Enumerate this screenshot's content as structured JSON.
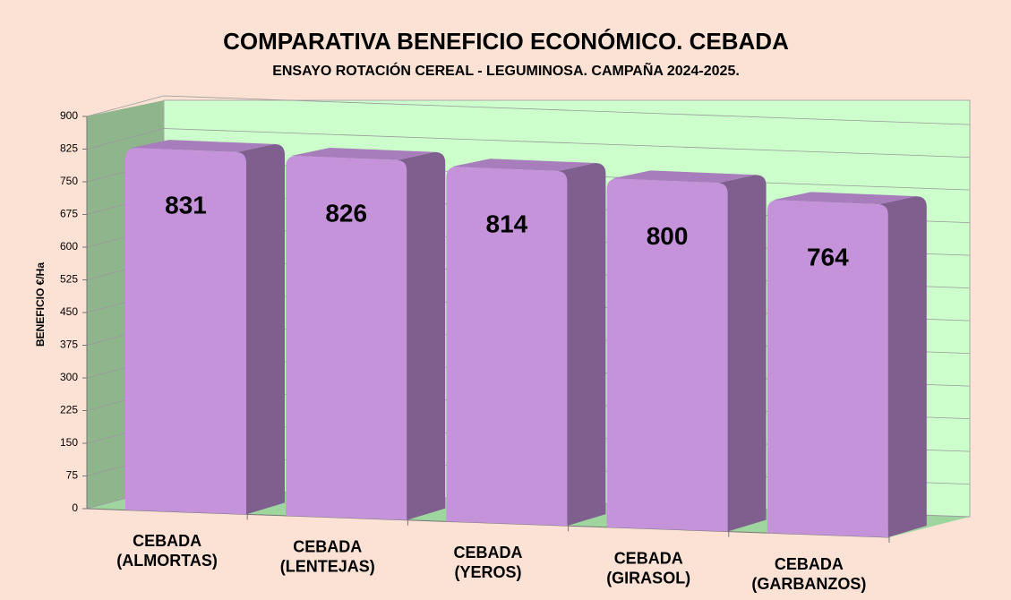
{
  "chart_data": {
    "type": "bar3d",
    "title": "COMPARATIVA BENEFICIO ECONÓMICO. CEBADA",
    "subtitle": "ENSAYO ROTACIÓN CEREAL - LEGUMINOSA.  CAMPAÑA 2024-2025.",
    "y_label": "BENEFICIO  €/Ha",
    "categories": [
      "CEBADA\n(ALMORTAS)",
      "CEBADA\n(LENTEJAS)",
      "CEBADA\n(YEROS)",
      "CEBADA\n(GIRASOL)",
      "CEBADA\n(GARBANZOS)"
    ],
    "values": [
      831,
      826,
      814,
      800,
      764
    ],
    "color": "#c493d9",
    "ylim": [
      0,
      900
    ],
    "yticks": [
      0,
      75,
      150,
      225,
      300,
      375,
      450,
      525,
      600,
      675,
      750,
      825,
      900
    ],
    "grid": true
  }
}
